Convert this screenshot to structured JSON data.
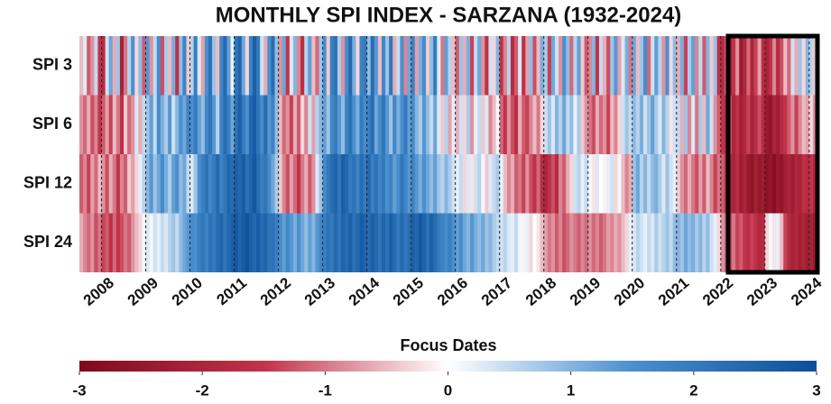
{
  "chart_data": {
    "type": "heatmap",
    "title": "MONTHLY SPI INDEX - SARZANA (1932-2024)",
    "xlabel": "Focus Dates",
    "xlim": [
      0,
      200
    ],
    "xticks": [
      {
        "value": 6,
        "label": "2008"
      },
      {
        "value": 18,
        "label": "2009"
      },
      {
        "value": 30,
        "label": "2010"
      },
      {
        "value": 42,
        "label": "2011"
      },
      {
        "value": 54,
        "label": "2012"
      },
      {
        "value": 66,
        "label": "2013"
      },
      {
        "value": 78,
        "label": "2014"
      },
      {
        "value": 90,
        "label": "2015"
      },
      {
        "value": 102,
        "label": "2016"
      },
      {
        "value": 114,
        "label": "2017"
      },
      {
        "value": 126,
        "label": "2018"
      },
      {
        "value": 138,
        "label": "2019"
      },
      {
        "value": 150,
        "label": "2020"
      },
      {
        "value": 162,
        "label": "2021"
      },
      {
        "value": 174,
        "label": "2022"
      },
      {
        "value": 186,
        "label": "2023"
      },
      {
        "value": 198,
        "label": "2024"
      }
    ],
    "clim": [
      -3,
      3
    ],
    "cticks": [
      -3,
      -2,
      -1,
      0,
      1,
      2,
      3
    ],
    "colors": [
      "#7f0a1c",
      "#c2334a",
      "#ffffff",
      "#4a90cf",
      "#0a4f99"
    ],
    "series": [
      {
        "name": "SPI 3",
        "values": [
          -0.5,
          0.3,
          -1.2,
          -0.8,
          0.5,
          -1.5,
          -1.8,
          0.4,
          1.2,
          -0.6,
          0.8,
          -2.1,
          -1.0,
          0.6,
          1.5,
          -0.3,
          0.9,
          -1.2,
          1.4,
          -0.8,
          0.5,
          1.6,
          -1.3,
          0.7,
          -0.5,
          1.1,
          -1.6,
          0.9,
          1.8,
          -0.4,
          0.6,
          1.9,
          0.3,
          -0.7,
          1.5,
          2.2,
          0.8,
          -0.5,
          1.7,
          2.4,
          1.3,
          0.2,
          2.1,
          2.5,
          1.2,
          -0.3,
          1.8,
          2.6,
          2.0,
          0.4,
          -0.6,
          1.5,
          2.3,
          0.9,
          -0.8,
          1.2,
          -1.5,
          0.3,
          1.0,
          -0.9,
          -1.7,
          0.6,
          1.3,
          -0.5,
          -1.1,
          0.8,
          1.5,
          -0.4,
          1.9,
          2.2,
          0.7,
          -0.8,
          1.6,
          2.4,
          1.1,
          -0.3,
          1.8,
          2.0,
          0.9,
          2.3,
          1.4,
          -0.5,
          1.7,
          0.8,
          2.1,
          -0.6,
          0.5,
          1.5,
          -0.9,
          1.2,
          1.8,
          -0.7,
          1.1,
          1.6,
          -0.4,
          0.9,
          2.0,
          0.3,
          -1.0,
          1.3,
          0.6,
          -0.5,
          -1.2,
          0.8,
          -0.6,
          1.1,
          -1.4,
          0.5,
          1.2,
          -0.8,
          -1.6,
          0.4,
          -0.3,
          1.0,
          -1.5,
          -0.9,
          0.6,
          -1.8,
          -1.2,
          0.3,
          -1.6,
          -0.7,
          0.9,
          -1.3,
          -0.5,
          1.1,
          0.7,
          -1.4,
          1.2,
          0.4,
          -0.8,
          1.5,
          0.9,
          -1.1,
          0.6,
          1.3,
          -0.4,
          -1.2,
          -0.9,
          1.0,
          -1.5,
          0.5,
          -0.6,
          -1.3,
          0.8,
          1.4,
          -0.7,
          0.3,
          1.1,
          -1.0,
          1.2,
          -0.5,
          0.8,
          1.6,
          -1.1,
          0.4,
          1.3,
          0.6,
          -0.8,
          1.5,
          -0.3,
          0.9,
          -0.6,
          1.1,
          -1.4,
          0.7,
          1.3,
          -0.9,
          0.5,
          -1.2,
          1.0,
          -0.4,
          0.8,
          -1.6,
          -1.8,
          -1.2,
          -2.2,
          -1.5,
          -0.8,
          -2.4,
          -1.9,
          -1.1,
          -2.0,
          -1.4,
          -0.7,
          -1.7,
          -2.1,
          -1.6,
          -0.9,
          -1.8,
          -1.3,
          -0.5,
          -1.1,
          0.4,
          -0.6,
          0.8,
          -0.3,
          1.0,
          0.6,
          -0.4
        ]
      },
      {
        "name": "SPI 6",
        "values": [
          -0.8,
          -1.1,
          -0.6,
          -1.3,
          -0.9,
          -1.5,
          -1.2,
          -0.7,
          -1.4,
          -0.5,
          -1.0,
          -1.6,
          -0.4,
          -1.1,
          -0.8,
          0.3,
          -0.6,
          0.5,
          0.8,
          1.3,
          0.5,
          1.6,
          1.1,
          0.7,
          1.4,
          0.4,
          1.0,
          1.5,
          1.2,
          1.8,
          1.5,
          2.0,
          1.3,
          0.9,
          1.7,
          2.1,
          1.4,
          0.6,
          1.8,
          2.3,
          1.9,
          1.2,
          2.2,
          2.6,
          2.0,
          1.5,
          2.4,
          2.7,
          2.1,
          1.6,
          2.3,
          1.4,
          1.8,
          0.9,
          -0.5,
          -1.1,
          -0.8,
          -1.4,
          -0.6,
          -1.2,
          -0.3,
          -0.9,
          0.4,
          -0.7,
          0.6,
          1.0,
          1.3,
          0.8,
          1.7,
          2.0,
          1.4,
          0.9,
          1.8,
          2.2,
          1.5,
          1.1,
          2.0,
          1.6,
          1.9,
          2.3,
          1.2,
          1.6,
          2.1,
          1.4,
          0.8,
          1.7,
          1.1,
          1.5,
          2.0,
          1.3,
          1.6,
          1.0,
          0.7,
          1.4,
          0.9,
          0.5,
          1.2,
          0.3,
          -0.4,
          0.6,
          -0.7,
          0.2,
          -0.6,
          0.4,
          -0.3,
          0.7,
          -0.8,
          0.2,
          0.5,
          -0.4,
          0.3,
          -0.9,
          -0.5,
          0.1,
          -1.1,
          -1.5,
          -0.8,
          -1.3,
          -1.7,
          -0.6,
          -1.2,
          -1.4,
          -0.9,
          -0.5,
          -1.0,
          -0.3,
          0.4,
          0.8,
          0.3,
          1.0,
          0.6,
          1.2,
          0.5,
          0.9,
          0.2,
          0.7,
          -0.4,
          -0.8,
          -1.0,
          -1.3,
          -0.6,
          -1.1,
          -0.8,
          -1.4,
          -0.5,
          -0.9,
          -0.3,
          0.4,
          0.8,
          0.5,
          0.9,
          0.6,
          1.1,
          0.4,
          0.8,
          1.3,
          0.7,
          0.3,
          1.0,
          0.6,
          -0.2,
          0.4,
          0.5,
          -0.6,
          0.8,
          -0.9,
          0.3,
          -1.0,
          0.7,
          -0.5,
          1.2,
          0.4,
          -0.8,
          -1.2,
          -1.5,
          -1.8,
          -1.3,
          -2.0,
          -1.6,
          -2.2,
          -1.9,
          -1.4,
          -2.1,
          -1.7,
          -1.3,
          -1.8,
          -2.4,
          -2.6,
          -2.0,
          -2.3,
          -1.8,
          -1.5,
          -1.2,
          -0.8,
          -1.4,
          -0.9,
          -0.5,
          -0.7,
          -0.3,
          -0.8
        ]
      },
      {
        "name": "SPI 12",
        "values": [
          -1.2,
          -0.9,
          -1.4,
          -0.7,
          -1.1,
          -0.5,
          -0.8,
          -1.3,
          -0.6,
          -1.0,
          -1.5,
          -0.9,
          -1.2,
          -0.4,
          -0.7,
          -0.3,
          0.2,
          0.6,
          1.0,
          1.4,
          0.8,
          1.2,
          1.6,
          1.1,
          0.7,
          1.3,
          1.5,
          0.9,
          1.2,
          0.5,
          0.3,
          0.8,
          1.5,
          1.9,
          2.2,
          1.7,
          2.0,
          2.4,
          1.8,
          2.1,
          2.5,
          2.3,
          2.6,
          2.4,
          2.7,
          2.2,
          2.5,
          2.8,
          2.3,
          1.9,
          2.1,
          1.6,
          1.2,
          0.7,
          -0.4,
          -0.9,
          -1.3,
          -0.7,
          -1.1,
          -1.5,
          -1.0,
          -0.6,
          -1.2,
          -0.8,
          0.3,
          0.8,
          1.6,
          2.0,
          2.3,
          2.5,
          2.1,
          2.6,
          2.4,
          2.0,
          2.2,
          1.8,
          2.3,
          2.0,
          2.4,
          1.9,
          2.2,
          1.7,
          2.0,
          1.5,
          1.8,
          1.3,
          1.6,
          2.1,
          1.7,
          1.4,
          1.8,
          1.4,
          1.1,
          1.5,
          1.2,
          0.9,
          1.3,
          0.8,
          0.6,
          1.0,
          0.7,
          0.4,
          0.2,
          0.5,
          -0.3,
          0.3,
          -0.2,
          0.4,
          0.6,
          0.1,
          -0.4,
          0.3,
          0.5,
          0.7,
          0.2,
          -0.5,
          -0.9,
          -0.6,
          -1.2,
          -1.0,
          -1.4,
          -0.8,
          -1.3,
          -1.6,
          -1.1,
          -1.7,
          -2.0,
          -1.6,
          -1.3,
          -1.8,
          -0.9,
          -1.2,
          -0.6,
          -0.3,
          0.4,
          0.6,
          0.2,
          0.5,
          0.1,
          -0.2,
          0.3,
          0.0,
          -0.1,
          0.2,
          0.4,
          -0.3,
          0.1,
          -0.5,
          -0.9,
          -0.6,
          0.8,
          1.2,
          0.6,
          1.0,
          0.5,
          0.9,
          1.1,
          0.7,
          0.3,
          0.8,
          0.4,
          0.2,
          -0.4,
          -0.8,
          -1.1,
          -0.6,
          -1.0,
          -1.3,
          -0.7,
          -1.2,
          -0.5,
          -0.9,
          -1.4,
          -1.0,
          -1.2,
          -1.6,
          -1.9,
          -2.1,
          -1.7,
          -2.3,
          -2.0,
          -2.4,
          -2.6,
          -2.2,
          -2.5,
          -2.3,
          -2.7,
          -2.5,
          -2.8,
          -2.4,
          -2.6,
          -2.2,
          -2.0,
          -2.3,
          -1.9,
          -2.1,
          -1.6,
          -1.8,
          -1.5,
          -1.9
        ]
      },
      {
        "name": "SPI 24",
        "values": [
          -0.6,
          -0.9,
          -1.1,
          -0.8,
          -1.3,
          -1.0,
          -1.4,
          -1.2,
          -1.6,
          -1.1,
          -1.5,
          -1.3,
          -1.0,
          -1.2,
          -0.8,
          -0.5,
          -0.3,
          0.1,
          0.3,
          0.1,
          0.4,
          0.2,
          0.5,
          0.3,
          0.6,
          0.8,
          0.5,
          0.9,
          1.2,
          1.4,
          1.6,
          1.5,
          1.9,
          2.1,
          1.8,
          2.2,
          2.0,
          2.3,
          2.5,
          2.1,
          2.4,
          2.6,
          2.8,
          2.5,
          2.7,
          2.9,
          2.6,
          2.4,
          2.7,
          2.3,
          2.5,
          2.1,
          2.2,
          1.9,
          1.6,
          1.3,
          1.7,
          1.4,
          1.1,
          1.5,
          1.2,
          0.9,
          1.3,
          1.0,
          1.4,
          1.7,
          1.9,
          2.2,
          2.0,
          2.4,
          2.1,
          2.5,
          2.3,
          2.6,
          2.2,
          2.4,
          2.7,
          2.5,
          2.3,
          2.6,
          2.4,
          2.1,
          2.5,
          2.2,
          2.6,
          2.3,
          2.0,
          2.4,
          2.1,
          2.3,
          2.6,
          2.4,
          2.8,
          2.5,
          2.2,
          2.6,
          2.3,
          2.0,
          1.8,
          1.6,
          1.9,
          1.5,
          1.3,
          1.6,
          1.2,
          1.0,
          1.4,
          1.1,
          0.9,
          1.2,
          0.8,
          1.0,
          0.7,
          0.5,
          0.4,
          0.6,
          0.3,
          0.2,
          0.5,
          0.1,
          -0.1,
          0.2,
          -0.3,
          0.0,
          -0.2,
          -0.5,
          -0.7,
          -1.0,
          -0.8,
          -1.2,
          -0.9,
          -1.3,
          -1.1,
          -0.8,
          -1.0,
          -1.2,
          -0.9,
          -1.1,
          -0.8,
          -1.1,
          -0.9,
          -1.2,
          -1.0,
          -0.7,
          -0.9,
          -0.6,
          -0.8,
          -0.5,
          -0.3,
          0.2,
          0.3,
          0.6,
          0.4,
          0.2,
          0.5,
          0.3,
          0.7,
          0.4,
          0.6,
          0.8,
          0.5,
          0.9,
          1.0,
          0.8,
          1.2,
          0.9,
          1.1,
          0.7,
          1.0,
          0.6,
          0.9,
          0.4,
          0.2,
          -0.3,
          -0.8,
          -1.1,
          -1.3,
          -1.0,
          -1.4,
          -1.2,
          -1.5,
          -1.7,
          -1.4,
          -1.6,
          -1.9,
          -1.8,
          -0.3,
          0.1,
          -0.2,
          0.2,
          -0.5,
          -1.4,
          -1.8,
          -2.1,
          -1.9,
          -2.2,
          -2.0,
          -2.3,
          -2.1,
          -2.4
        ]
      }
    ]
  }
}
